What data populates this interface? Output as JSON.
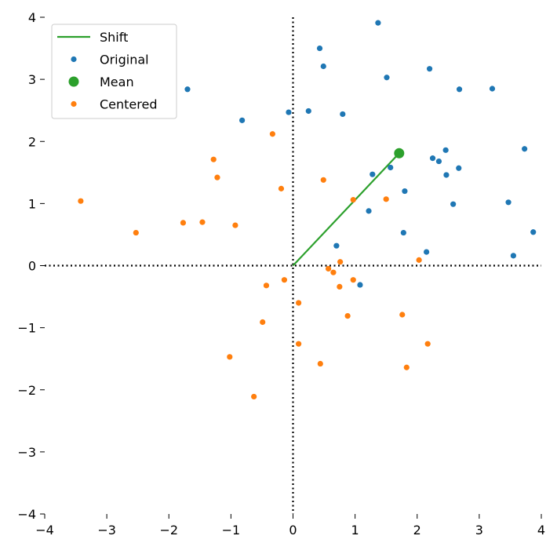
{
  "chart_data": {
    "type": "scatter",
    "title": "",
    "xlabel": "",
    "ylabel": "",
    "xlim": [
      -4,
      4
    ],
    "ylim": [
      -4,
      4
    ],
    "xticks": [
      -4,
      -3,
      -2,
      -1,
      0,
      1,
      2,
      3,
      4
    ],
    "yticks": [
      -4,
      -3,
      -2,
      -1,
      0,
      1,
      2,
      3,
      4
    ],
    "xtick_labels": [
      "−4",
      "−3",
      "−2",
      "−1",
      "0",
      "1",
      "2",
      "3",
      "4"
    ],
    "ytick_labels": [
      "−4",
      "−3",
      "−2",
      "−1",
      "0",
      "1",
      "2",
      "3",
      "4"
    ],
    "grid": false,
    "zero_lines": "dotted",
    "legend_position": "top-left",
    "series": [
      {
        "name": "Shift",
        "kind": "line",
        "color": "#2ca02c",
        "points": [
          [
            0,
            0
          ],
          [
            1.71,
            1.81
          ]
        ]
      },
      {
        "name": "Original",
        "kind": "scatter",
        "color": "#1f77b4",
        "marker_size": "small",
        "points": [
          [
            1.37,
            3.91
          ],
          [
            0.43,
            3.5
          ],
          [
            0.49,
            3.21
          ],
          [
            2.2,
            3.17
          ],
          [
            -1.7,
            2.84
          ],
          [
            1.51,
            3.03
          ],
          [
            2.68,
            2.84
          ],
          [
            3.21,
            2.85
          ],
          [
            -0.82,
            2.34
          ],
          [
            -0.07,
            2.47
          ],
          [
            0.25,
            2.49
          ],
          [
            0.8,
            2.44
          ],
          [
            3.73,
            1.88
          ],
          [
            2.46,
            1.86
          ],
          [
            2.25,
            1.73
          ],
          [
            2.35,
            1.68
          ],
          [
            1.57,
            1.58
          ],
          [
            2.67,
            1.57
          ],
          [
            1.28,
            1.47
          ],
          [
            2.47,
            1.46
          ],
          [
            1.8,
            1.2
          ],
          [
            2.58,
            0.99
          ],
          [
            3.47,
            1.02
          ],
          [
            1.22,
            0.88
          ],
          [
            1.78,
            0.53
          ],
          [
            3.87,
            0.54
          ],
          [
            0.7,
            0.32
          ],
          [
            2.15,
            0.22
          ],
          [
            3.55,
            0.16
          ],
          [
            1.08,
            -0.31
          ]
        ]
      },
      {
        "name": "Mean",
        "kind": "scatter",
        "color": "#2ca02c",
        "marker_size": "large",
        "points": [
          [
            1.71,
            1.81
          ]
        ]
      },
      {
        "name": "Centered",
        "kind": "scatter",
        "color": "#ff7f0e",
        "marker_size": "small",
        "points": [
          [
            -0.33,
            2.12
          ],
          [
            -1.28,
            1.71
          ],
          [
            -1.22,
            1.42
          ],
          [
            0.49,
            1.38
          ],
          [
            -0.19,
            1.24
          ],
          [
            -3.42,
            1.04
          ],
          [
            0.97,
            1.06
          ],
          [
            1.5,
            1.07
          ],
          [
            -2.53,
            0.53
          ],
          [
            -1.77,
            0.69
          ],
          [
            -1.46,
            0.7
          ],
          [
            -0.93,
            0.65
          ],
          [
            0.76,
            0.06
          ],
          [
            2.03,
            0.09
          ],
          [
            0.57,
            -0.05
          ],
          [
            0.65,
            -0.11
          ],
          [
            -0.14,
            -0.23
          ],
          [
            0.97,
            -0.23
          ],
          [
            -0.43,
            -0.32
          ],
          [
            0.75,
            -0.34
          ],
          [
            0.09,
            -0.6
          ],
          [
            0.88,
            -0.81
          ],
          [
            1.76,
            -0.79
          ],
          [
            -0.49,
            -0.91
          ],
          [
            0.09,
            -1.26
          ],
          [
            2.17,
            -1.26
          ],
          [
            -1.02,
            -1.47
          ],
          [
            0.44,
            -1.58
          ],
          [
            1.83,
            -1.64
          ],
          [
            -0.63,
            -2.11
          ]
        ]
      }
    ],
    "legend": {
      "entries": [
        "Shift",
        "Original",
        "Mean",
        "Centered"
      ]
    }
  }
}
